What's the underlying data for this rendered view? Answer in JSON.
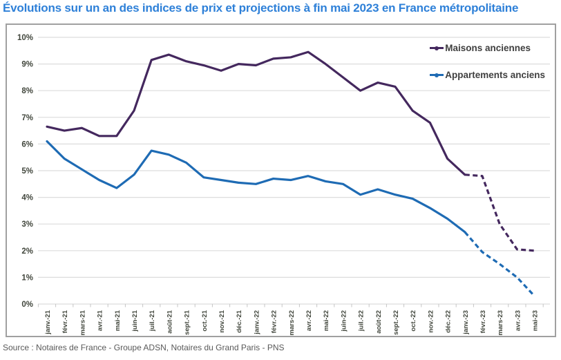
{
  "title": "Évolutions sur un an des indices de prix et projections à fin mai 2023 en France métropolitaine",
  "source": "Source : Notaires de France - Groupe ADSN, Notaires du Grand Paris - PNS",
  "colors": {
    "title": "#2e80d8",
    "maisons": "#44285e",
    "appartements": "#1e6bb4",
    "grid": "#dcdcdc",
    "tick": "#c4c4c4",
    "axis_text": "#41463c",
    "legend_text": "#3f3f3f",
    "border": "#a0a0a0"
  },
  "legend": {
    "maisons_label": "Maisons anciennes",
    "appartements_label": "Appartements anciens"
  },
  "chart_data": {
    "type": "line",
    "title": "Évolutions sur un an des indices de prix et projections à fin mai 2023 en France métropolitaine",
    "categories": [
      "janv.-21",
      "févr.-21",
      "mars-21",
      "avr.-21",
      "mai-21",
      "juin-21",
      "juil.-21",
      "août-21",
      "sept.-21",
      "oct.-21",
      "nov.-21",
      "déc.-21",
      "janv.-22",
      "févr.-22",
      "mars-22",
      "avr.-22",
      "mai-22",
      "juin-22",
      "juil.-22",
      "août-22",
      "sept.-22",
      "oct.-22",
      "nov.-22",
      "déc.-22",
      "janv.-23",
      "févr.-23",
      "mars-23",
      "avr.-23",
      "mai-23"
    ],
    "series": [
      {
        "name": "Maisons anciennes",
        "color": "#44285e",
        "values": [
          6.65,
          6.5,
          6.6,
          6.3,
          6.3,
          7.25,
          9.15,
          9.35,
          9.1,
          8.95,
          8.75,
          9.0,
          8.95,
          9.2,
          9.25,
          9.45,
          9.0,
          8.5,
          8.0,
          8.3,
          8.15,
          7.25,
          6.8,
          5.45,
          4.85,
          4.8,
          3.0,
          2.05,
          2.0
        ],
        "dashed_from_index": 24,
        "dashed_meaning": "projections"
      },
      {
        "name": "Appartements anciens",
        "color": "#1e6bb4",
        "values": [
          6.1,
          5.45,
          5.05,
          4.65,
          4.35,
          4.85,
          5.75,
          5.6,
          5.3,
          4.75,
          4.65,
          4.55,
          4.5,
          4.7,
          4.65,
          4.8,
          4.6,
          4.5,
          4.1,
          4.3,
          4.1,
          3.95,
          3.6,
          3.2,
          2.7,
          1.95,
          1.5,
          1.0,
          0.3
        ],
        "dashed_from_index": 24,
        "dashed_meaning": "projections"
      }
    ],
    "xlabel": "",
    "ylabel": "",
    "ylim": [
      0,
      10
    ],
    "ytick_step": 1,
    "ytick_labels": [
      "0%",
      "1%",
      "2%",
      "3%",
      "4%",
      "5%",
      "6%",
      "7%",
      "8%",
      "9%",
      "10%"
    ],
    "grid": true,
    "legend_position": "top-right"
  }
}
